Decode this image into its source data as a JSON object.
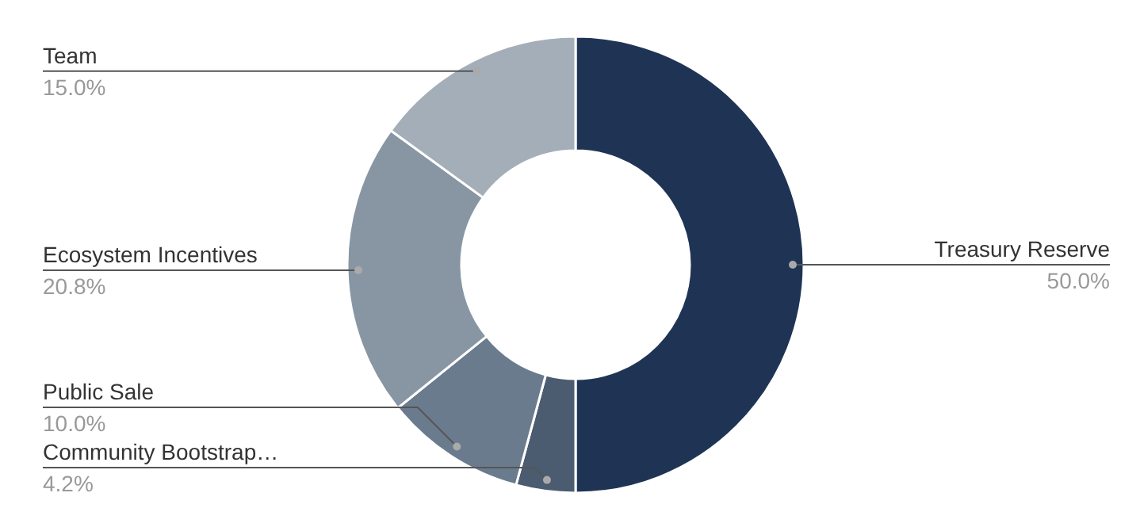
{
  "chart_data": {
    "type": "donut",
    "categories": [
      "Treasury Reserve",
      "Community Bootstrap…",
      "Public Sale",
      "Ecosystem Incentives",
      "Team"
    ],
    "values": [
      50.0,
      4.2,
      10.0,
      20.8,
      15.0
    ],
    "value_labels": [
      "50.0%",
      "4.2%",
      "10.0%",
      "20.8%",
      "15.0%"
    ],
    "colors": [
      "#1f3455",
      "#4b5b70",
      "#6b7b8e",
      "#8896a4",
      "#a3aeb8"
    ],
    "legend": false
  }
}
